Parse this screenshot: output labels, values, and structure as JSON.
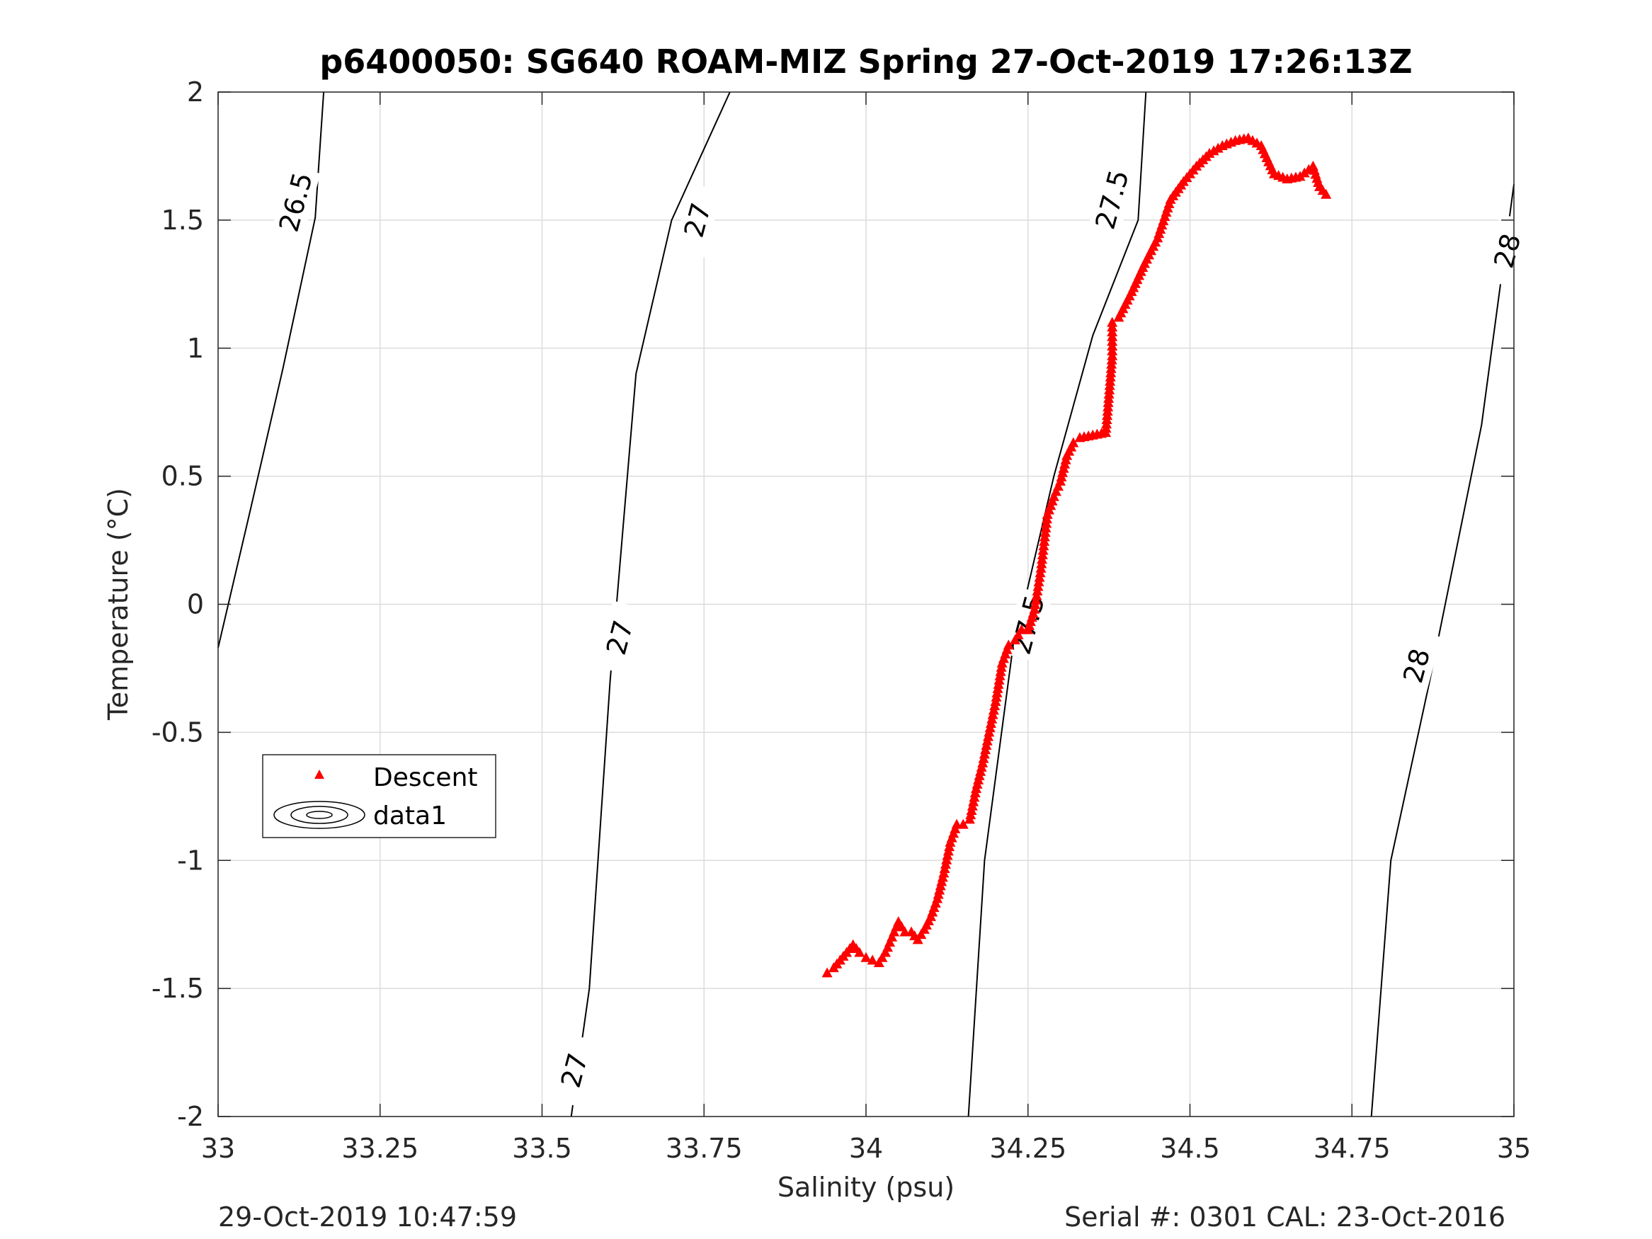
{
  "title": "p6400050: SG640 ROAM-MIZ Spring 27-Oct-2019 17:26:13Z",
  "footer": {
    "left": "29-Oct-2019 10:47:59",
    "right": "Serial #: 0301  CAL: 23-Oct-2016"
  },
  "colors": {
    "descent": "#ff0000",
    "contour": "#000000",
    "grid": "#dcdcdc",
    "axis": "#262626"
  },
  "chart_data": {
    "type": "scatter",
    "title": "p6400050: SG640 ROAM-MIZ Spring 27-Oct-2019 17:26:13Z",
    "xlabel": "Salinity (psu)",
    "ylabel": "Temperature (°C)",
    "xlim": [
      33,
      35
    ],
    "ylim": [
      -2,
      2
    ],
    "xticks": [
      33,
      33.25,
      33.5,
      33.75,
      34,
      34.25,
      34.5,
      34.75,
      35
    ],
    "xtick_labels": [
      "33",
      "33.25",
      "33.5",
      "33.75",
      "34",
      "34.25",
      "34.5",
      "34.75",
      "35"
    ],
    "yticks": [
      -2,
      -1.5,
      -1,
      -0.5,
      0,
      0.5,
      1,
      1.5,
      2
    ],
    "ytick_labels": [
      "-2",
      "-1.5",
      "-1",
      "-0.5",
      "0",
      "0.5",
      "1",
      "1.5",
      "2"
    ],
    "grid": true,
    "legend": {
      "placement": "middle-left",
      "entries": [
        {
          "name": "Descent",
          "marker": "red-triangle"
        },
        {
          "name": "data1",
          "marker": "contour-ellipses"
        }
      ]
    },
    "series": [
      {
        "name": "Descent",
        "color": "#ff0000",
        "marker": "triangle",
        "x": [
          33.94,
          33.95,
          33.96,
          33.97,
          33.98,
          33.99,
          34.0,
          34.01,
          34.02,
          34.03,
          34.04,
          34.05,
          34.06,
          34.07,
          34.08,
          34.09,
          34.1,
          34.11,
          34.12,
          34.13,
          34.14,
          34.15,
          34.16,
          34.17,
          34.18,
          34.19,
          34.2,
          34.21,
          34.22,
          34.23,
          34.24,
          34.25,
          34.26,
          34.27,
          34.28,
          34.29,
          34.3,
          34.31,
          34.32,
          34.33,
          34.35,
          34.37,
          34.38,
          34.38,
          34.39,
          34.41,
          34.43,
          34.45,
          34.47,
          34.49,
          34.51,
          34.53,
          34.55,
          34.57,
          34.59,
          34.61,
          34.63,
          34.65,
          34.67,
          34.69,
          34.7,
          34.71
        ],
        "y": [
          -1.44,
          -1.42,
          -1.39,
          -1.36,
          -1.33,
          -1.36,
          -1.38,
          -1.39,
          -1.4,
          -1.36,
          -1.3,
          -1.24,
          -1.28,
          -1.28,
          -1.31,
          -1.27,
          -1.22,
          -1.15,
          -1.05,
          -0.93,
          -0.86,
          -0.86,
          -0.84,
          -0.72,
          -0.62,
          -0.5,
          -0.38,
          -0.23,
          -0.16,
          -0.14,
          -0.1,
          -0.1,
          -0.02,
          0.14,
          0.35,
          0.42,
          0.48,
          0.58,
          0.63,
          0.65,
          0.66,
          0.67,
          0.97,
          1.1,
          1.12,
          1.22,
          1.33,
          1.43,
          1.58,
          1.65,
          1.71,
          1.76,
          1.79,
          1.81,
          1.82,
          1.79,
          1.68,
          1.66,
          1.67,
          1.71,
          1.63,
          1.6
        ]
      }
    ],
    "contours": {
      "name": "data1",
      "color": "#000000",
      "lines": [
        {
          "level": "26.5",
          "points": [
            [
              33.0,
              -0.17
            ],
            [
              33.05,
              0.37
            ],
            [
              33.1,
              0.92
            ],
            [
              33.15,
              1.51
            ],
            [
              33.163,
              2.0
            ]
          ]
        },
        {
          "level": "27",
          "points": [
            [
              33.545,
              -2.0
            ],
            [
              33.573,
              -1.5
            ],
            [
              33.605,
              -0.3
            ],
            [
              33.645,
              0.9
            ],
            [
              33.7,
              1.5
            ],
            [
              33.79,
              2.0
            ]
          ]
        },
        {
          "level": "27.5",
          "points": [
            [
              34.158,
              -2.0
            ],
            [
              34.183,
              -1.0
            ],
            [
              34.225,
              -0.2
            ],
            [
              34.29,
              0.5
            ],
            [
              34.35,
              1.05
            ],
            [
              34.42,
              1.5
            ],
            [
              34.432,
              2.0
            ]
          ]
        },
        {
          "level": "28",
          "points": [
            [
              34.78,
              -2.0
            ],
            [
              34.81,
              -1.0
            ],
            [
              34.87,
              -0.3
            ],
            [
              34.95,
              0.7
            ],
            [
              35.0,
              1.64
            ]
          ]
        }
      ],
      "labels": [
        {
          "text": "26.5",
          "x": 33.12,
          "y": 1.57
        },
        {
          "text": "27",
          "x": 33.55,
          "y": -1.82
        },
        {
          "text": "27",
          "x": 33.62,
          "y": -0.13
        },
        {
          "text": "27",
          "x": 33.74,
          "y": 1.5
        },
        {
          "text": "27.5",
          "x": 34.25,
          "y": -0.08
        },
        {
          "text": "27.5",
          "x": 34.38,
          "y": 1.58
        },
        {
          "text": "28",
          "x": 34.85,
          "y": -0.24
        },
        {
          "text": "28",
          "x": 34.99,
          "y": 1.38
        }
      ]
    }
  }
}
